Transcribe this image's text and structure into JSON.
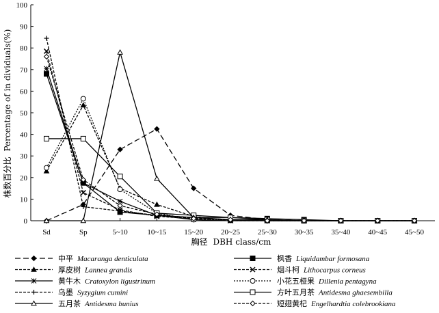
{
  "chart_data": {
    "type": "line",
    "title": "",
    "xlabel": {
      "cn": "胸径",
      "en": "DBH class/cm"
    },
    "ylabel": {
      "cn": "株数百分比",
      "en": "Percentage of in dividuals(%)"
    },
    "ylim": [
      0,
      100
    ],
    "yticks": [
      "0",
      "10",
      "20",
      "30",
      "40",
      "50",
      "60",
      "70",
      "80",
      "90",
      "100"
    ],
    "categories": [
      "Sd",
      "Sp",
      "5~10",
      "10~15",
      "15~20",
      "20~25",
      "25~30",
      "30~35",
      "35~40",
      "40~45",
      "45~50"
    ],
    "grid": false,
    "legend_position": "bottom",
    "series": [
      {
        "cn": "中平",
        "sci": "Macaranga denticulata",
        "dash": "long",
        "marker": "diamond-filled",
        "values": [
          0,
          7.5,
          33,
          42.5,
          15,
          2.5,
          0.5,
          0,
          0,
          0,
          0
        ]
      },
      {
        "cn": "枫香",
        "sci": "Liquidambar formosana",
        "dash": "solid",
        "marker": "square-filled",
        "values": [
          68,
          17.5,
          4,
          2.5,
          1.5,
          1.5,
          1,
          0.5,
          0,
          0,
          0
        ]
      },
      {
        "cn": "厚皮树",
        "sci": "Lannea grandis",
        "dash": "short",
        "marker": "triangle-filled",
        "values": [
          23,
          53.5,
          15,
          7.5,
          2,
          0,
          0,
          0,
          0,
          0,
          0
        ]
      },
      {
        "cn": "烟斗柯",
        "sci": "Lithocarpus corneus",
        "dash": "short",
        "marker": "x",
        "values": [
          78.5,
          13,
          5,
          2,
          1,
          0.5,
          0,
          0,
          0,
          0,
          0
        ]
      },
      {
        "cn": "黄牛木",
        "sci": "Cratoxylon ligustrinum",
        "dash": "solid",
        "marker": "asterisk",
        "values": [
          70.5,
          17.5,
          9,
          2.5,
          0.5,
          0,
          0,
          0,
          0,
          0,
          0
        ]
      },
      {
        "cn": "小花五桠果",
        "sci": "Dillenia pentagyna",
        "dash": "dotted",
        "marker": "circle-open",
        "values": [
          24.5,
          56.5,
          14.5,
          3.5,
          0.5,
          0.5,
          0,
          0,
          0,
          0,
          0
        ]
      },
      {
        "cn": "乌墨",
        "sci": "Syzygium cumini",
        "dash": "short",
        "marker": "plus",
        "values": [
          84.5,
          6.5,
          4.5,
          2.5,
          1.5,
          0.5,
          0,
          0,
          0,
          0,
          0
        ]
      },
      {
        "cn": "方叶五月茶",
        "sci": "Antidesma ghaesembilla",
        "dash": "solid",
        "marker": "square-open",
        "values": [
          38,
          38,
          20.5,
          3.5,
          2.5,
          1.5,
          0.5,
          0,
          0,
          0,
          0
        ]
      },
      {
        "cn": "五月茶",
        "sci": "Antidesma bunius",
        "dash": "solid",
        "marker": "triangle-open",
        "values": [
          0,
          0,
          78,
          19.5,
          1.5,
          0.5,
          0.5,
          0,
          0,
          0,
          0
        ]
      },
      {
        "cn": "短翅黄杞",
        "sci": "Engelhardtia colebrookiana",
        "dash": "short",
        "marker": "diamond-open",
        "values": [
          76,
          19,
          7,
          3,
          1,
          0.5,
          0,
          0,
          0,
          0,
          0
        ]
      }
    ]
  }
}
